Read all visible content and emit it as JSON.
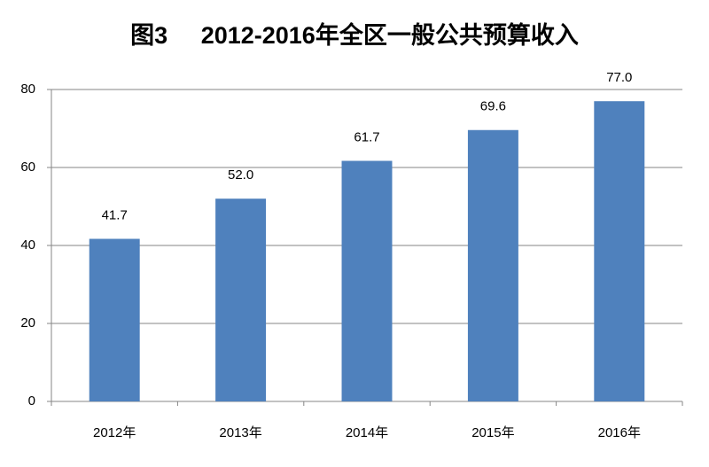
{
  "chart_data": {
    "type": "bar",
    "title": "图3     2012-2016年全区一般公共预算收入",
    "categories": [
      "2012年",
      "2013年",
      "2014年",
      "2015年",
      "2016年"
    ],
    "values": [
      41.7,
      52.0,
      61.7,
      69.6,
      77.0
    ],
    "value_labels": [
      "41.7",
      "52.0",
      "61.7",
      "69.6",
      "77.0"
    ],
    "color": "#4f81bd",
    "ylim": [
      0,
      80
    ],
    "yticks": [
      0,
      20,
      40,
      60,
      80
    ],
    "grid": true
  }
}
